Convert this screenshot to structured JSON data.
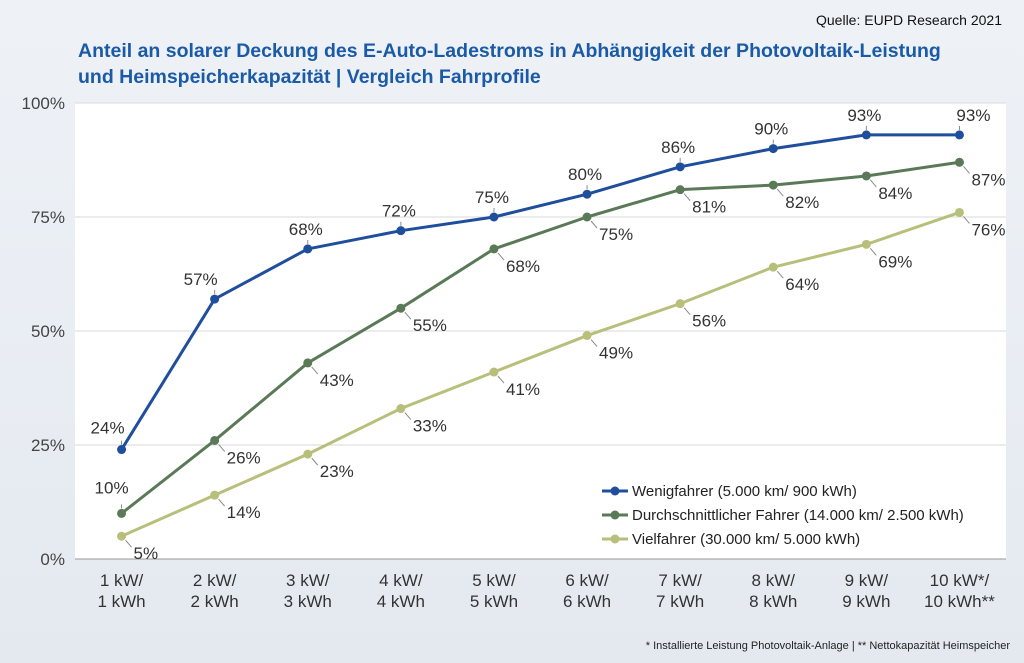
{
  "source": "Quelle: EUPD Research 2021",
  "footnote": "* Installierte Leistung Photovoltaik-Anlage | ** Nettokapazität Heimspeicher",
  "chart_data": {
    "type": "line",
    "title": "Anteil an solarer Deckung des E-Auto-Ladestroms in Abhängigkeit der Photovoltaik-Leistung und Heimspeicherkapazität | Vergleich Fahrprofile",
    "categories": [
      [
        "1 kW/",
        "1 kWh"
      ],
      [
        "2 kW/",
        "2 kWh"
      ],
      [
        "3 kW/",
        "3 kWh"
      ],
      [
        "4 kW/",
        "4 kWh"
      ],
      [
        "5 kW/",
        "5 kWh"
      ],
      [
        "6 kW/",
        "6 kWh"
      ],
      [
        "7 kW/",
        "7 kWh"
      ],
      [
        "8 kW/",
        "8 kWh"
      ],
      [
        "9 kW/",
        "9 kWh"
      ],
      [
        "10 kW*/",
        "10 kWh**"
      ]
    ],
    "yticks": [
      "0%",
      "25%",
      "50%",
      "75%",
      "100%"
    ],
    "ylim": [
      0,
      100
    ],
    "grid": true,
    "legend_position": "bottom-right",
    "series": [
      {
        "name": "Wenigfahrer (5.000 km/ 900 kWh)",
        "color": "#1f4e9c",
        "values": [
          24,
          57,
          68,
          72,
          75,
          80,
          86,
          90,
          93,
          93
        ],
        "labels": [
          "24%",
          "57%",
          "68%",
          "72%",
          "75%",
          "80%",
          "86%",
          "90%",
          "93%",
          "93%"
        ]
      },
      {
        "name": "Durchschnittlicher Fahrer (14.000 km/ 2.500 kWh)",
        "color": "#5a7a57",
        "values": [
          10,
          26,
          43,
          55,
          68,
          75,
          81,
          82,
          84,
          87
        ],
        "labels": [
          "10%",
          "26%",
          "43%",
          "55%",
          "68%",
          "75%",
          "81%",
          "82%",
          "84%",
          "87%"
        ]
      },
      {
        "name": "Vielfahrer (30.000 km/ 5.000 kWh)",
        "color": "#b8bf7a",
        "values": [
          5,
          14,
          23,
          33,
          41,
          49,
          56,
          64,
          69,
          76
        ],
        "labels": [
          "5%",
          "14%",
          "23%",
          "33%",
          "41%",
          "49%",
          "56%",
          "64%",
          "69%",
          "76%"
        ]
      }
    ]
  }
}
